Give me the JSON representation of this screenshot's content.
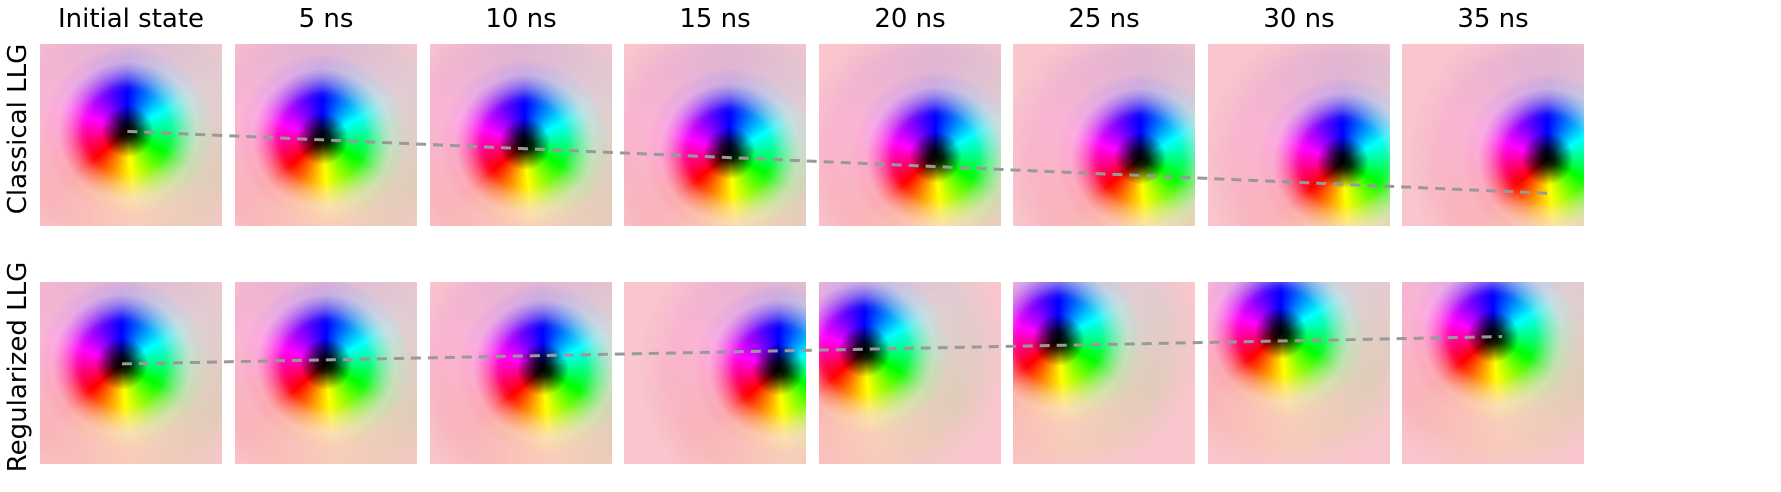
{
  "columns": [
    "Initial state",
    "5 ns",
    "10 ns",
    "15 ns",
    "20 ns",
    "25 ns",
    "30 ns",
    "35 ns"
  ],
  "rows": [
    {
      "label": "Classical LLG",
      "vortex_centers": [
        [
          0.48,
          0.48
        ],
        [
          0.48,
          0.52
        ],
        [
          0.52,
          0.55
        ],
        [
          0.58,
          0.6
        ],
        [
          0.64,
          0.62
        ],
        [
          0.7,
          0.63
        ],
        [
          0.74,
          0.65
        ],
        [
          0.8,
          0.63
        ]
      ],
      "trajectory_endpoints": [
        [
          0.48,
          0.48
        ],
        [
          0.8,
          0.82
        ]
      ]
    },
    {
      "label": "Regularized LLG",
      "vortex_centers": [
        [
          0.45,
          0.45
        ],
        [
          0.5,
          0.45
        ],
        [
          0.62,
          0.48
        ],
        [
          0.85,
          0.48
        ],
        [
          0.25,
          0.38
        ],
        [
          0.25,
          0.32
        ],
        [
          0.4,
          0.28
        ],
        [
          0.5,
          0.3
        ]
      ],
      "trajectory_endpoints": [
        [
          0.45,
          0.45
        ],
        [
          0.55,
          0.3
        ]
      ]
    }
  ],
  "colors": {
    "background_pink": "#f8c6cc",
    "trajectory_line": "#999999",
    "core": "#000000",
    "blue": "#0000ff",
    "cyan": "#00ffff",
    "green": "#00ff00",
    "yellow": "#ffff00",
    "red": "#ff0000",
    "magenta": "#ff00ff"
  }
}
